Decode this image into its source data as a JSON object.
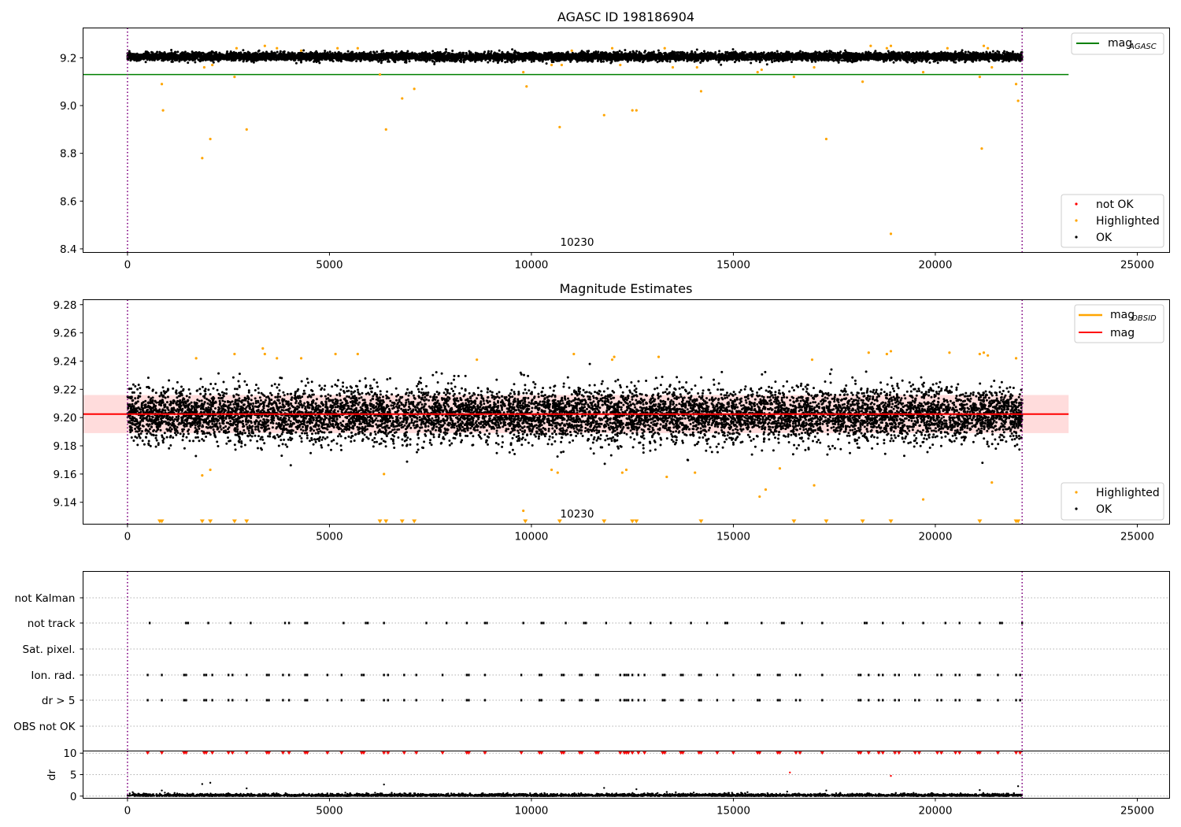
{
  "chart_data": [
    {
      "type": "scatter",
      "title": "AGASC ID 198186904",
      "xlim": [
        -1100,
        25800
      ],
      "ylim": [
        8.385,
        9.325
      ],
      "xticks": [
        0,
        5000,
        10000,
        15000,
        20000,
        25000
      ],
      "yticks": [
        8.4,
        8.6,
        8.8,
        9.0,
        9.2
      ],
      "yticks_labels": [
        "8.4",
        "8.6",
        "8.8",
        "9.0",
        "9.2"
      ],
      "xticks_labels": [
        "0",
        "5000",
        "10000",
        "15000",
        "20000",
        "25000"
      ],
      "obsid_label": "10230",
      "obsid_label_x": 11000,
      "obs_boundaries": [
        0,
        22150
      ],
      "reference_line": {
        "name": "mag_AGASC",
        "label": "mag",
        "sub": "AGASC",
        "value": 9.13,
        "x_range": [
          -1100,
          23300
        ],
        "color": "#008000"
      },
      "ok_band": {
        "center": 9.205,
        "spread": 0.018,
        "x_range": [
          0,
          22150
        ]
      },
      "highlighted": [
        [
          850,
          9.09
        ],
        [
          880,
          8.98
        ],
        [
          1850,
          8.78
        ],
        [
          1900,
          9.16
        ],
        [
          2050,
          8.86
        ],
        [
          2100,
          9.17
        ],
        [
          2650,
          9.12
        ],
        [
          2700,
          9.24
        ],
        [
          2950,
          8.9
        ],
        [
          3400,
          9.25
        ],
        [
          3700,
          9.24
        ],
        [
          4300,
          9.23
        ],
        [
          5200,
          9.24
        ],
        [
          5700,
          9.24
        ],
        [
          6250,
          9.13
        ],
        [
          6400,
          8.9
        ],
        [
          6800,
          9.03
        ],
        [
          7100,
          9.07
        ],
        [
          9800,
          9.14
        ],
        [
          9880,
          9.08
        ],
        [
          10500,
          9.17
        ],
        [
          10700,
          8.91
        ],
        [
          10750,
          9.17
        ],
        [
          11000,
          9.23
        ],
        [
          11800,
          8.96
        ],
        [
          12000,
          9.24
        ],
        [
          12200,
          9.17
        ],
        [
          12500,
          8.98
        ],
        [
          12600,
          8.98
        ],
        [
          13300,
          9.24
        ],
        [
          13500,
          9.16
        ],
        [
          14200,
          9.06
        ],
        [
          14100,
          9.16
        ],
        [
          15600,
          9.14
        ],
        [
          15700,
          9.15
        ],
        [
          16500,
          9.12
        ],
        [
          17000,
          9.16
        ],
        [
          17300,
          8.86
        ],
        [
          18200,
          9.1
        ],
        [
          18400,
          9.25
        ],
        [
          18800,
          9.24
        ],
        [
          18900,
          9.25
        ],
        [
          19700,
          9.14
        ],
        [
          20300,
          9.24
        ],
        [
          21100,
          9.12
        ],
        [
          21150,
          8.82
        ],
        [
          21200,
          9.25
        ],
        [
          21300,
          9.24
        ],
        [
          21400,
          9.16
        ],
        [
          22000,
          9.09
        ],
        [
          22050,
          9.02
        ]
      ],
      "not_ok": [],
      "legend": [
        "not OK",
        "Highlighted",
        "OK"
      ],
      "legend_colors": [
        "#ff0000",
        "#ffa500",
        "#000000"
      ]
    },
    {
      "type": "scatter",
      "title": "Magnitude Estimates",
      "xlim": [
        -1100,
        25800
      ],
      "ylim": [
        9.1245,
        9.2835
      ],
      "xticks": [
        0,
        5000,
        10000,
        15000,
        20000,
        25000
      ],
      "xticks_labels": [
        "0",
        "5000",
        "10000",
        "15000",
        "20000",
        "25000"
      ],
      "yticks": [
        9.14,
        9.16,
        9.18,
        9.2,
        9.22,
        9.24,
        9.26,
        9.28
      ],
      "yticks_labels": [
        "9.14",
        "9.16",
        "9.18",
        "9.20",
        "9.22",
        "9.24",
        "9.26",
        "9.28"
      ],
      "obsid_label": "10230",
      "obsid_label_x": 11000,
      "obs_boundaries": [
        0,
        22150
      ],
      "mag_line": {
        "label": "mag",
        "value": 9.2025,
        "x_range": [
          -1100,
          23300
        ],
        "color": "#ff0000"
      },
      "mag_band": {
        "low": 9.189,
        "high": 9.216,
        "color": "#ffdcdc"
      },
      "mag_obsid_line": {
        "label": "mag",
        "sub": "OBSID",
        "value": 9.2025,
        "x_range": [
          0,
          22150
        ],
        "color": "#ffa500"
      },
      "ok_band": {
        "center": 9.202,
        "spread": 0.017
      },
      "highlighted": [
        [
          1700,
          9.242
        ],
        [
          1850,
          9.159
        ],
        [
          2050,
          9.163
        ],
        [
          2650,
          9.245
        ],
        [
          3350,
          9.249
        ],
        [
          3400,
          9.245
        ],
        [
          3700,
          9.242
        ],
        [
          4300,
          9.242
        ],
        [
          5150,
          9.245
        ],
        [
          5700,
          9.245
        ],
        [
          6350,
          9.16
        ],
        [
          8650,
          9.241
        ],
        [
          9800,
          9.134
        ],
        [
          10500,
          9.163
        ],
        [
          10650,
          9.161
        ],
        [
          11050,
          9.245
        ],
        [
          12000,
          9.241
        ],
        [
          12050,
          9.243
        ],
        [
          12250,
          9.161
        ],
        [
          12350,
          9.163
        ],
        [
          13150,
          9.243
        ],
        [
          13350,
          9.158
        ],
        [
          14050,
          9.161
        ],
        [
          15650,
          9.144
        ],
        [
          15800,
          9.149
        ],
        [
          16150,
          9.164
        ],
        [
          16950,
          9.241
        ],
        [
          17000,
          9.152
        ],
        [
          18350,
          9.246
        ],
        [
          18800,
          9.245
        ],
        [
          18900,
          9.247
        ],
        [
          19700,
          9.142
        ],
        [
          20350,
          9.246
        ],
        [
          21100,
          9.245
        ],
        [
          21200,
          9.246
        ],
        [
          21300,
          9.244
        ],
        [
          21400,
          9.154
        ],
        [
          22000,
          9.242
        ]
      ],
      "below_range_markers": [
        800,
        850,
        1850,
        2050,
        2650,
        2950,
        6250,
        6400,
        6800,
        7100,
        9850,
        10700,
        11800,
        12500,
        12600,
        14200,
        16500,
        17300,
        18200,
        18900,
        21100,
        22000,
        22050
      ],
      "legend_lines": [
        "mag_OBSID",
        "mag"
      ],
      "legend_points": [
        "Highlighted",
        "OK"
      ]
    },
    {
      "type": "scatter",
      "title": "",
      "xlim": [
        -1100,
        25800
      ],
      "xticks": [
        0,
        5000,
        10000,
        15000,
        20000,
        25000
      ],
      "xticks_labels": [
        "0",
        "5000",
        "10000",
        "15000",
        "20000",
        "25000"
      ],
      "obs_boundaries": [
        0,
        22150
      ],
      "flag_rows": [
        "not Kalman",
        "not track",
        "Sat. pixel.",
        "Ion. rad.",
        "dr > 5",
        "OBS not OK"
      ],
      "flag_events": {
        "not Kalman": [],
        "not track": [
          550,
          1450,
          1500,
          2000,
          2550,
          3050,
          3900,
          4000,
          4400,
          4450,
          5350,
          5900,
          5950,
          6350,
          7400,
          7900,
          8400,
          8850,
          8900,
          9800,
          10250,
          10300,
          10850,
          11300,
          11350,
          11850,
          12450,
          12950,
          13450,
          13950,
          14350,
          14800,
          14850,
          15700,
          16200,
          16250,
          16700,
          17200,
          18250,
          18300,
          18700,
          19200,
          19700,
          20250,
          20600,
          21100,
          21600,
          21650,
          22150
        ],
        "Sat. pixel.": [],
        "Ion. rad.": [
          500,
          850,
          1400,
          1450,
          1900,
          1950,
          2100,
          2500,
          2600,
          2950,
          3450,
          3500,
          3850,
          4000,
          4400,
          4450,
          4950,
          5300,
          5800,
          5850,
          6350,
          6450,
          6850,
          7150,
          7800,
          8400,
          8450,
          8850,
          9750,
          10200,
          10250,
          10750,
          10800,
          11200,
          11250,
          11600,
          11650,
          12200,
          12300,
          12350,
          12400,
          12500,
          12650,
          12800,
          13250,
          13300,
          13700,
          13750,
          14150,
          14200,
          14600,
          15000,
          15600,
          15650,
          16100,
          16150,
          16550,
          16650,
          17200,
          18100,
          18150,
          18350,
          18600,
          18700,
          19000,
          19100,
          19500,
          19600,
          20050,
          20150,
          20500,
          20600,
          21050,
          21100,
          21550,
          22000,
          22100
        ],
        "dr > 5": [
          500,
          850,
          1400,
          1450,
          1900,
          1950,
          2100,
          2500,
          2600,
          2950,
          3450,
          3500,
          3850,
          4000,
          4400,
          4450,
          4950,
          5300,
          5800,
          5850,
          6350,
          6450,
          6850,
          7150,
          7800,
          8400,
          8450,
          8850,
          9750,
          10200,
          10250,
          10750,
          10800,
          11200,
          11250,
          11600,
          11650,
          12200,
          12300,
          12350,
          12400,
          12500,
          12650,
          12800,
          13250,
          13300,
          13700,
          13750,
          14150,
          14200,
          14600,
          15000,
          15600,
          15650,
          16100,
          16150,
          16550,
          16650,
          17200,
          18100,
          18150,
          18350,
          18600,
          18700,
          19000,
          19100,
          19500,
          19600,
          20050,
          20150,
          20500,
          20600,
          21050,
          21100,
          21550,
          22000,
          22100
        ],
        "OBS not OK": []
      }
    },
    {
      "type": "scatter",
      "title": "",
      "ylabel": "dr",
      "xlim": [
        -1100,
        25800
      ],
      "ylim": [
        -0.5,
        10.5
      ],
      "xticks": [
        0,
        5000,
        10000,
        15000,
        20000,
        25000
      ],
      "xticks_labels": [
        "0",
        "5000",
        "10000",
        "15000",
        "20000",
        "25000"
      ],
      "yticks": [
        0,
        5,
        10
      ],
      "yticks_labels": [
        "0",
        "5",
        "10"
      ],
      "obs_boundaries": [
        0,
        22150
      ],
      "clipped_at": 10,
      "outliers_red": [
        [
          16400,
          5.5
        ],
        [
          18900,
          4.7
        ]
      ],
      "outliers_black": [
        [
          850,
          1.3
        ],
        [
          1850,
          2.8
        ],
        [
          2050,
          3.1
        ],
        [
          2950,
          1.8
        ],
        [
          6350,
          2.7
        ],
        [
          11800,
          1.9
        ],
        [
          12600,
          1.6
        ],
        [
          17300,
          1.3
        ],
        [
          21100,
          1.4
        ],
        [
          22050,
          2.3
        ]
      ]
    }
  ]
}
